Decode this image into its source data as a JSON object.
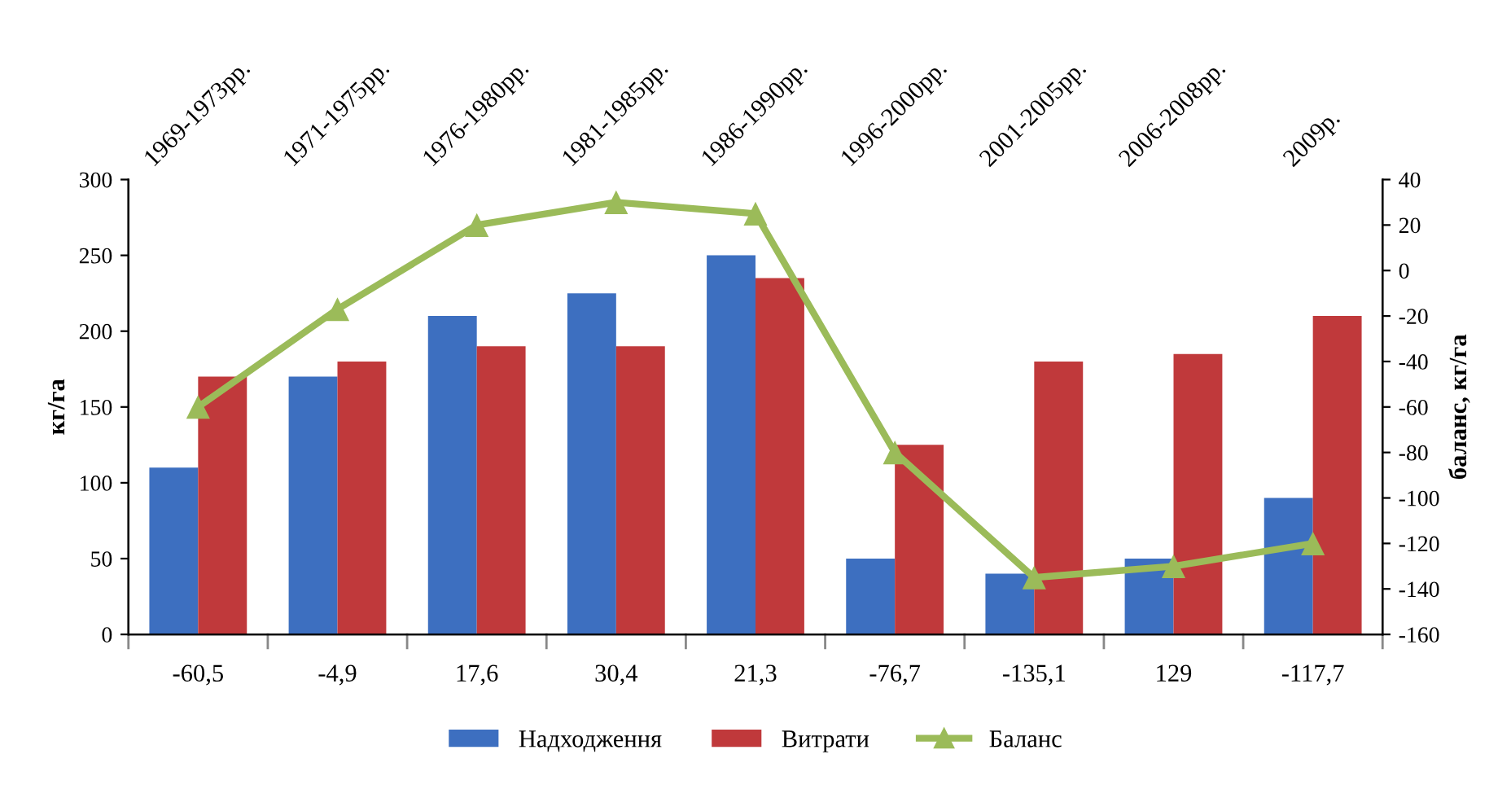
{
  "chart_data": {
    "type": "bar",
    "categories": [
      "1969-1973рр.",
      "1971-1975рр.",
      "1976-1980рр.",
      "1981-1985рр.",
      "1986-1990рр.",
      "1996-2000рр.",
      "2001-2005рр.",
      "2006-2008рр.",
      "2009р."
    ],
    "series": [
      {
        "name": "Надходження",
        "color": "#3d6fc0",
        "values": [
          110,
          170,
          210,
          225,
          250,
          50,
          40,
          50,
          90
        ]
      },
      {
        "name": "Витрати",
        "color": "#c0393b",
        "values": [
          170,
          180,
          190,
          190,
          235,
          125,
          180,
          185,
          210
        ]
      },
      {
        "name": "Баланс",
        "type": "line",
        "axis": "y2",
        "color": "#9bbb59",
        "marker": "triangle",
        "values": [
          -60,
          -17,
          20,
          30,
          25,
          -80,
          -135,
          -130,
          -120
        ]
      }
    ],
    "annotations": [
      "-60,5",
      "-4,9",
      "17,6",
      "30,4",
      "21,3",
      "-76,7",
      "-135,1",
      "129",
      "-117,7"
    ],
    "ylabel": "кг/га",
    "y2label": "баланс, кг/га",
    "ylim": [
      0,
      300
    ],
    "yticks": [
      0,
      50,
      100,
      150,
      200,
      250,
      300
    ],
    "y2lim": [
      -160,
      40
    ],
    "y2ticks": [
      -160,
      -140,
      -120,
      -100,
      -80,
      -60,
      -40,
      -20,
      0,
      20,
      40
    ],
    "grid": false,
    "legend": "bottom"
  }
}
